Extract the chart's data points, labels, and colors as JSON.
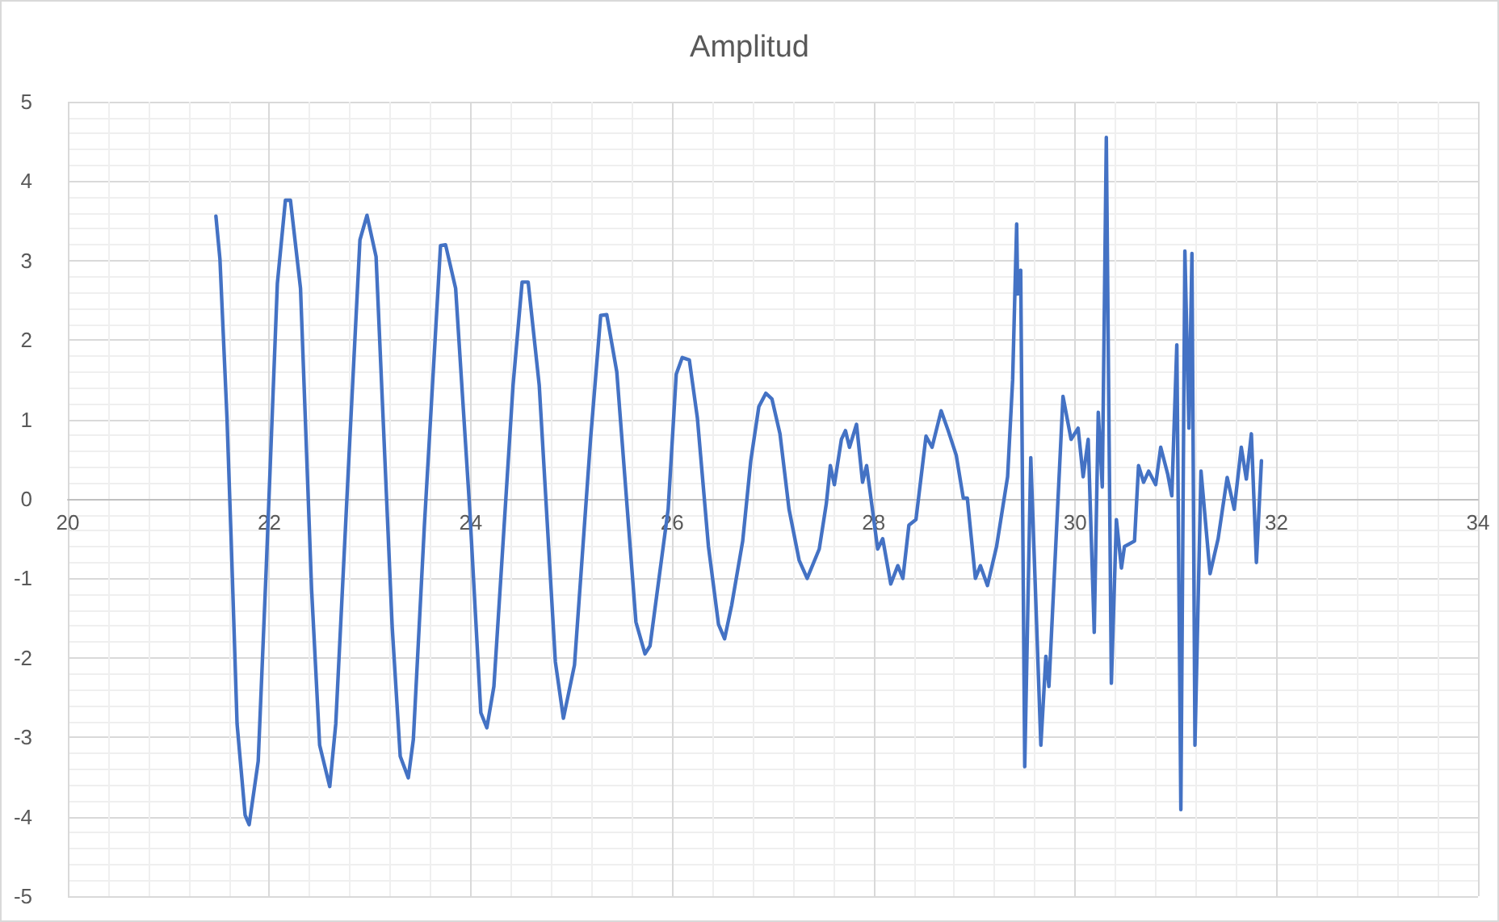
{
  "chart_data": {
    "type": "line",
    "title": "Amplitud",
    "color": "#4472c4",
    "marker": "none",
    "line_style": "solid",
    "grid": true,
    "xlim": [
      20,
      34
    ],
    "xticks": [
      20,
      22,
      24,
      26,
      28,
      30,
      32,
      34
    ],
    "ylim": [
      -5,
      5
    ],
    "yticks": [
      -5,
      -4,
      -3,
      -2,
      -1,
      0,
      1,
      2,
      3,
      4,
      5
    ],
    "x": [
      21.47,
      21.51,
      21.58,
      21.62,
      21.68,
      21.76,
      21.8,
      21.89,
      21.97,
      22.08,
      22.16,
      22.21,
      22.31,
      22.42,
      22.5,
      22.6,
      22.66,
      22.8,
      22.9,
      22.97,
      23.06,
      23.22,
      23.3,
      23.38,
      23.43,
      23.54,
      23.7,
      23.75,
      23.85,
      23.99,
      24.1,
      24.16,
      24.23,
      24.42,
      24.51,
      24.57,
      24.68,
      24.84,
      24.92,
      25.03,
      25.19,
      25.29,
      25.35,
      25.45,
      25.64,
      25.73,
      25.78,
      25.96,
      26.04,
      26.1,
      26.17,
      26.25,
      26.36,
      26.46,
      26.52,
      26.59,
      26.7,
      26.78,
      26.86,
      26.93,
      26.99,
      27.07,
      27.16,
      27.26,
      27.34,
      27.46,
      27.53,
      27.57,
      27.61,
      27.68,
      27.72,
      27.76,
      27.83,
      27.89,
      27.93,
      28.04,
      28.09,
      28.17,
      28.24,
      28.29,
      28.35,
      28.42,
      28.52,
      28.58,
      28.67,
      28.74,
      28.82,
      28.89,
      28.93,
      29.01,
      29.06,
      29.13,
      29.22,
      29.33,
      29.38,
      29.42,
      29.43,
      29.46,
      29.5,
      29.56,
      29.66,
      29.71,
      29.74,
      29.88,
      29.96,
      30.03,
      30.08,
      30.13,
      30.19,
      30.23,
      30.27,
      30.31,
      30.36,
      30.41,
      30.46,
      30.49,
      30.59,
      30.63,
      30.68,
      30.73,
      30.8,
      30.85,
      30.92,
      30.96,
      31.01,
      31.05,
      31.09,
      31.13,
      31.16,
      31.19,
      31.25,
      31.34,
      31.42,
      31.51,
      31.58,
      31.65,
      31.7,
      31.75,
      31.8,
      31.85
    ],
    "values": [
      3.56,
      3.02,
      1.02,
      -0.46,
      -2.83,
      -3.98,
      -4.1,
      -3.3,
      -0.86,
      2.71,
      3.76,
      3.76,
      2.65,
      -1.14,
      -3.1,
      -3.62,
      -2.83,
      0.76,
      3.26,
      3.57,
      3.05,
      -1.61,
      -3.24,
      -3.51,
      -3.03,
      -0.33,
      3.19,
      3.2,
      2.65,
      -0.13,
      -2.69,
      -2.88,
      -2.36,
      1.43,
      2.73,
      2.73,
      1.43,
      -2.05,
      -2.76,
      -2.09,
      0.76,
      2.31,
      2.32,
      1.6,
      -1.55,
      -1.95,
      -1.85,
      -0.13,
      1.57,
      1.78,
      1.75,
      1.02,
      -0.6,
      -1.58,
      -1.76,
      -1.34,
      -0.53,
      0.48,
      1.16,
      1.33,
      1.26,
      0.82,
      -0.13,
      -0.77,
      -1.0,
      -0.63,
      -0.06,
      0.42,
      0.18,
      0.75,
      0.86,
      0.65,
      0.94,
      0.21,
      0.42,
      -0.63,
      -0.5,
      -1.07,
      -0.84,
      -1.0,
      -0.33,
      -0.26,
      0.79,
      0.65,
      1.11,
      0.86,
      0.55,
      0.01,
      0.01,
      -1.0,
      -0.84,
      -1.09,
      -0.6,
      0.28,
      1.5,
      3.46,
      2.58,
      2.88,
      -3.37,
      0.52,
      -3.1,
      -1.98,
      -2.36,
      1.29,
      0.75,
      0.89,
      0.28,
      0.75,
      -1.68,
      1.09,
      0.15,
      4.55,
      -2.32,
      -0.26,
      -0.87,
      -0.6,
      -0.53,
      0.42,
      0.21,
      0.35,
      0.18,
      0.65,
      0.31,
      0.04,
      1.94,
      -3.91,
      3.12,
      0.89,
      3.09,
      -3.1,
      0.35,
      -0.94,
      -0.5,
      0.27,
      -0.13,
      0.65,
      0.25,
      0.82,
      -0.8,
      0.48
    ]
  }
}
